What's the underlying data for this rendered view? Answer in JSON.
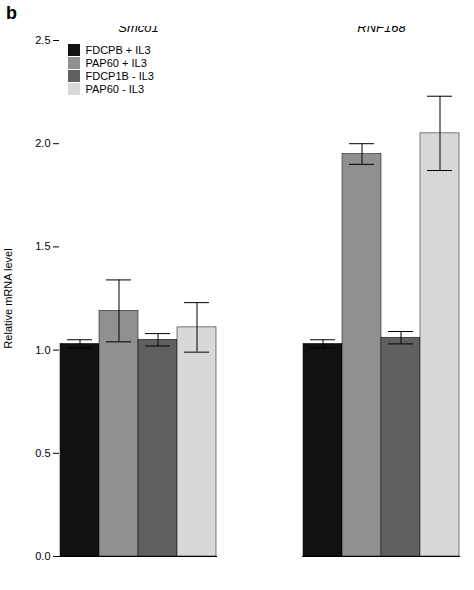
{
  "chart_data": {
    "type": "bar",
    "title": "b",
    "categories": [
      "Smco1",
      "RNF168"
    ],
    "series": [
      {
        "name": "FDCPB + IL3",
        "color": "#111111",
        "values": [
          1.03,
          1.03
        ],
        "errors": [
          0.02,
          0.02
        ]
      },
      {
        "name": "PAP60 + IL3",
        "color": "#909090",
        "values": [
          1.19,
          1.95
        ],
        "errors": [
          0.15,
          0.05
        ]
      },
      {
        "name": "FDCP1B - IL3",
        "color": "#606060",
        "values": [
          1.05,
          1.06
        ],
        "errors": [
          0.03,
          0.03
        ]
      },
      {
        "name": "PAP60 - IL3",
        "color": "#d8d8d8",
        "values": [
          1.11,
          2.05
        ],
        "errors": [
          0.12,
          0.18
        ]
      }
    ],
    "ylabel": "Relative mRNA level",
    "ylim": [
      0,
      2.5
    ],
    "yticks": [
      {
        "value": 0,
        "label": "0.0"
      },
      0.5,
      {
        "value": 1,
        "label": "1.0"
      },
      1.5,
      {
        "value": 2,
        "label": "2.0"
      },
      2.5
    ],
    "legend": "upper left"
  }
}
